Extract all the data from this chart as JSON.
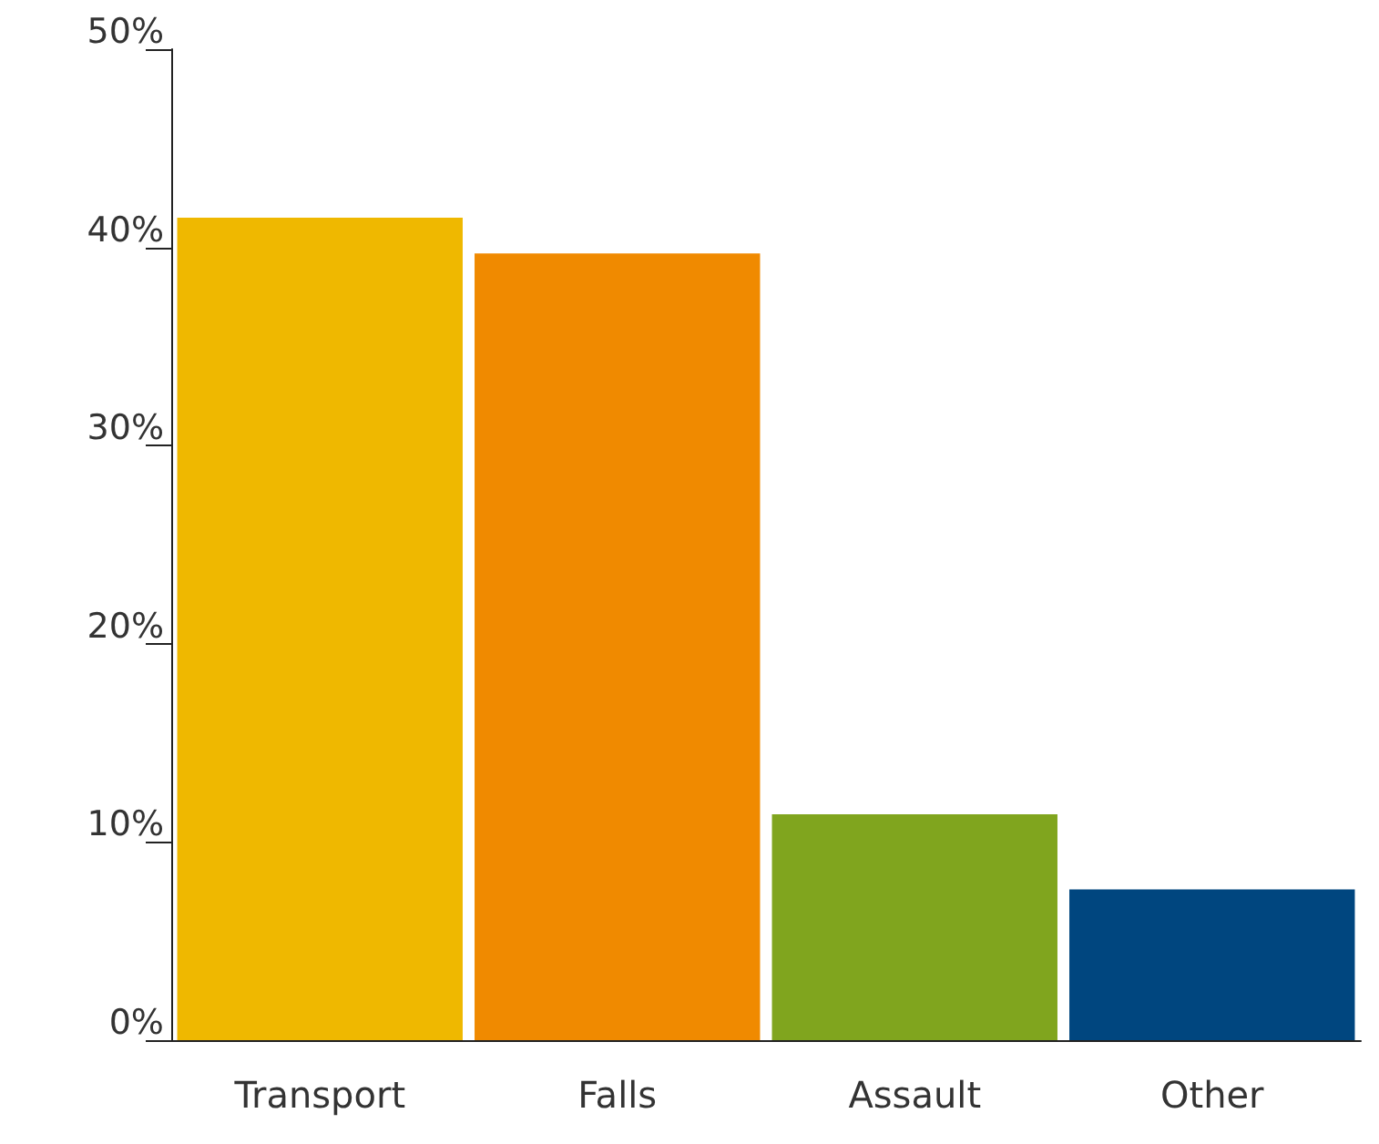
{
  "chart_data": {
    "type": "bar",
    "categories": [
      "Transport",
      "Falls",
      "Assault",
      "Other"
    ],
    "values": [
      41.5,
      39.7,
      11.4,
      7.6
    ],
    "colors": [
      "#efb800",
      "#f08a00",
      "#80a51e",
      "#00467f"
    ],
    "ylim": [
      0,
      50
    ],
    "yticks": [
      {
        "value": 0,
        "label": "0%"
      },
      {
        "value": 10,
        "label": "10%"
      },
      {
        "value": 20,
        "label": "20%"
      },
      {
        "value": 30,
        "label": "30%"
      },
      {
        "value": 40,
        "label": "40%"
      },
      {
        "value": 50,
        "label": "50%"
      }
    ],
    "grid": false
  }
}
